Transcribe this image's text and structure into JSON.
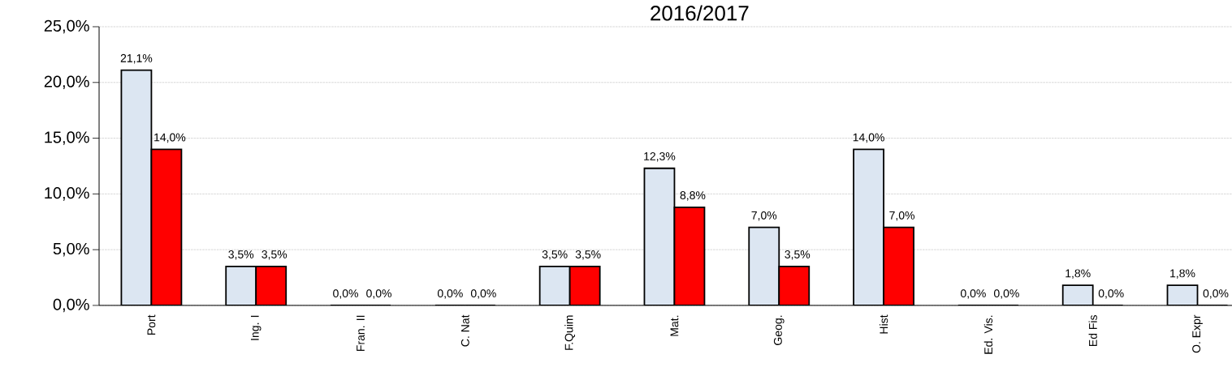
{
  "chart_data": {
    "type": "bar",
    "title": "2016/2017",
    "categories": [
      "Port",
      "Ing. I",
      "Fran. II",
      "C. Nat",
      "F.Quim",
      "Mat.",
      "Geog.",
      "Hist",
      "Ed. Vis.",
      "Ed Fis",
      "O. Expr"
    ],
    "series": [
      {
        "color": "#dce6f2",
        "values": [
          21.1,
          3.5,
          0,
          0,
          3.5,
          12.3,
          7.0,
          14.0,
          0,
          1.8,
          1.8
        ],
        "value_labels": [
          "21,1%",
          "3,5%",
          "0,0%",
          "0,0%",
          "3,5%",
          "12,3%",
          "7,0%",
          "14,0%",
          "0,0%",
          "1,8%",
          "1,8%"
        ]
      },
      {
        "color": "#ff0000",
        "values": [
          14.0,
          3.5,
          0,
          0,
          3.5,
          8.8,
          3.5,
          7.0,
          0,
          0,
          0
        ],
        "value_labels": [
          "14,0%",
          "3,5%",
          "0,0%",
          "0,0%",
          "3,5%",
          "8,8%",
          "3,5%",
          "7,0%",
          "0,0%",
          "0,0%",
          "0,0%"
        ]
      }
    ],
    "ylim": [
      0,
      25
    ],
    "yticks": [
      {
        "value": 0,
        "label": "0,0%"
      },
      {
        "value": 5,
        "label": "5,0%"
      },
      {
        "value": 10,
        "label": "10,0%"
      },
      {
        "value": 15,
        "label": "15,0%"
      },
      {
        "value": 20,
        "label": "20,0%"
      },
      {
        "value": 25,
        "label": "25,0%"
      }
    ],
    "grid": "y"
  }
}
